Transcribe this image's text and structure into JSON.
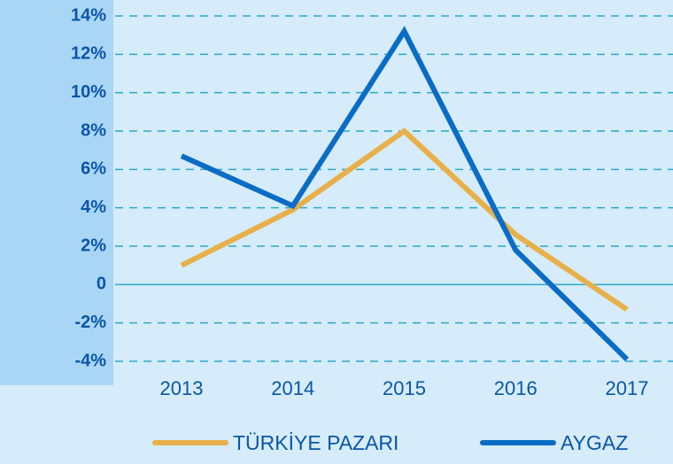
{
  "chart_data": {
    "type": "line",
    "categories": [
      "2013",
      "2014",
      "2015",
      "2016",
      "2017"
    ],
    "series": [
      {
        "name": "TÜRKİYE PAZARI",
        "color": "#e8b04a",
        "values": [
          1.0,
          3.9,
          8.0,
          2.6,
          -1.3
        ]
      },
      {
        "name": "AYGAZ",
        "color": "#0b6cc6",
        "values": [
          6.7,
          4.1,
          13.2,
          1.8,
          -3.9
        ]
      }
    ],
    "ylim": [
      -4,
      14
    ],
    "yticks": [
      {
        "value": -4,
        "label": "-4%"
      },
      {
        "value": -2,
        "label": "-2%"
      },
      0,
      {
        "value": 2,
        "label": "2%"
      },
      {
        "value": 4,
        "label": "4%"
      },
      {
        "value": 6,
        "label": "6%"
      },
      {
        "value": 8,
        "label": "8%"
      },
      {
        "value": 10,
        "label": "10%"
      },
      {
        "value": 12,
        "label": "12%"
      },
      {
        "value": 14,
        "label": "14%"
      }
    ],
    "grid": true,
    "legend": "bottom"
  }
}
